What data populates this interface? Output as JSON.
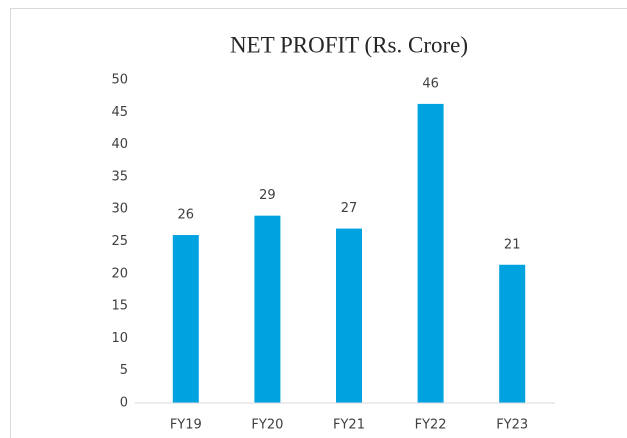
{
  "chart_data": {
    "type": "bar",
    "title": "NET PROFIT (Rs. Crore)",
    "categories": [
      "FY19",
      "FY20",
      "FY21",
      "FY22",
      "FY23"
    ],
    "values": [
      26,
      29,
      27,
      46.3,
      21.4
    ],
    "value_labels": [
      "26",
      "29",
      "27",
      "46",
      "21"
    ],
    "color": "#00a3e0",
    "ylim": [
      0,
      50
    ],
    "yticks": [
      0,
      5,
      10,
      15,
      20,
      25,
      30,
      35,
      40,
      45,
      50
    ],
    "grid": false
  }
}
